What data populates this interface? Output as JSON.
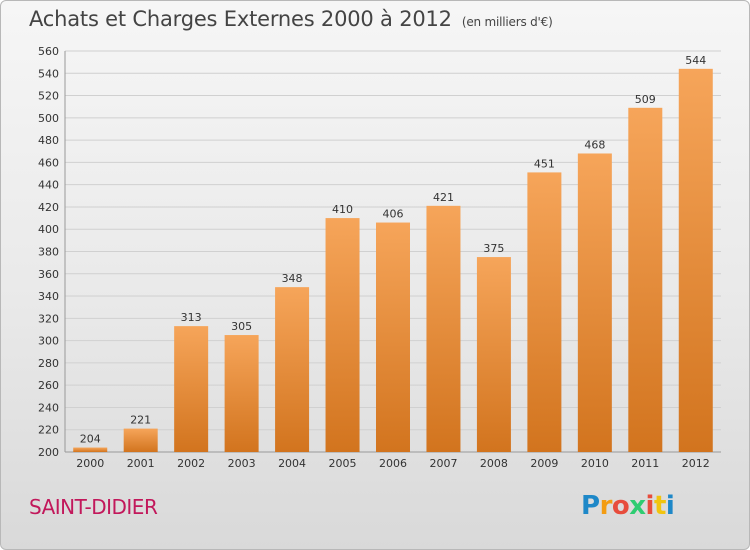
{
  "header": {
    "title": "Achats et Charges Externes 2000 à 2012",
    "subtitle": "(en milliers d'€)"
  },
  "footer": {
    "city": "SAINT-DIDIER",
    "logo": "Proxiti"
  },
  "colors": {
    "bar_top": "#f6a55a",
    "bar_bottom": "#d2741e",
    "city": "#c2185b",
    "grid": "#d0d0d0"
  },
  "chart_data": {
    "type": "bar",
    "title": "Achats et Charges Externes 2000 à 2012",
    "subtitle": "(en milliers d'€)",
    "xlabel": "",
    "ylabel": "",
    "ylim": [
      200,
      560
    ],
    "ytick_step": 20,
    "grid": true,
    "categories": [
      "2000",
      "2001",
      "2002",
      "2003",
      "2004",
      "2005",
      "2006",
      "2007",
      "2008",
      "2009",
      "2010",
      "2011",
      "2012"
    ],
    "values": [
      204,
      221,
      313,
      305,
      348,
      410,
      406,
      421,
      375,
      451,
      468,
      509,
      544
    ]
  }
}
